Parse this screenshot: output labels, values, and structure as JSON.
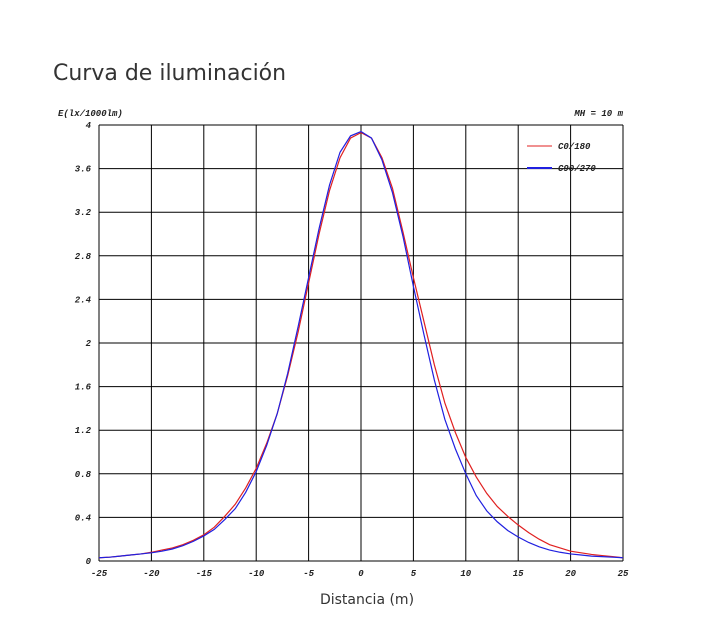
{
  "chart_data": {
    "type": "line",
    "title": "Curva de iluminación",
    "y_label": "E(lx/1000lm)",
    "annotation": "MH = 10 m",
    "x_label": "Distancia (m)",
    "x": [
      -25,
      -24,
      -23,
      -22,
      -21,
      -20,
      -19,
      -18,
      -17,
      -16,
      -15,
      -14,
      -13,
      -12,
      -11,
      -10,
      -9,
      -8,
      -7,
      -6,
      -5,
      -4,
      -3,
      -2,
      -1,
      0,
      1,
      2,
      3,
      4,
      5,
      6,
      7,
      8,
      9,
      10,
      11,
      12,
      13,
      14,
      15,
      16,
      17,
      18,
      19,
      20,
      21,
      22,
      23,
      24,
      25
    ],
    "series": [
      {
        "name": "C0/180",
        "color": "#e02020",
        "values": [
          0.03,
          0.035,
          0.045,
          0.055,
          0.065,
          0.08,
          0.1,
          0.12,
          0.15,
          0.19,
          0.24,
          0.31,
          0.41,
          0.52,
          0.67,
          0.85,
          1.08,
          1.35,
          1.7,
          2.1,
          2.55,
          3.0,
          3.4,
          3.7,
          3.88,
          3.93,
          3.88,
          3.7,
          3.42,
          3.02,
          2.6,
          2.2,
          1.8,
          1.45,
          1.18,
          0.95,
          0.77,
          0.62,
          0.5,
          0.41,
          0.33,
          0.26,
          0.2,
          0.15,
          0.12,
          0.09,
          0.075,
          0.06,
          0.05,
          0.04,
          0.03
        ]
      },
      {
        "name": "C90/270",
        "color": "#2020e0",
        "values": [
          0.03,
          0.035,
          0.045,
          0.055,
          0.065,
          0.075,
          0.09,
          0.11,
          0.14,
          0.18,
          0.23,
          0.29,
          0.38,
          0.48,
          0.63,
          0.82,
          1.06,
          1.35,
          1.72,
          2.15,
          2.6,
          3.05,
          3.45,
          3.75,
          3.9,
          3.94,
          3.88,
          3.68,
          3.38,
          2.98,
          2.52,
          2.08,
          1.66,
          1.3,
          1.03,
          0.8,
          0.6,
          0.46,
          0.36,
          0.28,
          0.22,
          0.17,
          0.13,
          0.1,
          0.08,
          0.065,
          0.055,
          0.045,
          0.04,
          0.035,
          0.03
        ]
      }
    ],
    "xlim": [
      -25,
      25
    ],
    "xticks": [
      -25,
      -20,
      -15,
      -10,
      -5,
      0,
      5,
      10,
      15,
      20,
      25
    ],
    "ylim": [
      0,
      4
    ],
    "yticks": [
      0,
      0.4,
      0.8,
      1.2,
      1.6,
      2,
      2.4,
      2.8,
      3.2,
      3.6,
      4
    ],
    "grid": true,
    "legend": "upper right"
  }
}
